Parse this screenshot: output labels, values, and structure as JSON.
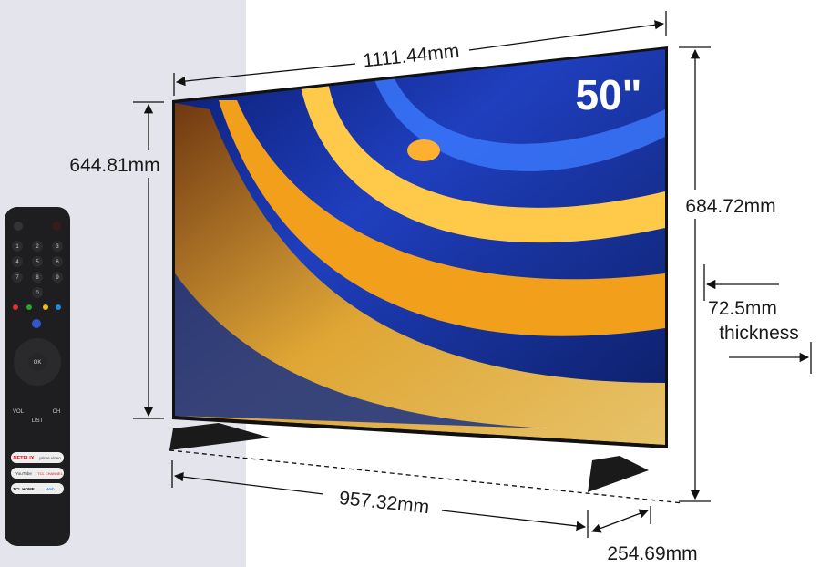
{
  "product": {
    "screen_size_badge": "50\"",
    "brand_colors": {
      "panel_bg": "#e4e4ec",
      "screen_blue": "#1f3fbf",
      "screen_orange": "#f5a623"
    }
  },
  "dimensions": {
    "width": "1111.44mm",
    "screen_height": "644.81mm",
    "total_height": "684.72mm",
    "thickness_value": "72.5mm",
    "thickness_label": "thickness",
    "stand_width": "957.32mm",
    "stand_depth": "254.69mm"
  },
  "remote": {
    "number_keys": [
      "1",
      "2",
      "3",
      "4",
      "5",
      "6",
      "7",
      "8",
      "9",
      "0"
    ],
    "ok_label": "OK",
    "vol_label": "VOL",
    "ch_label": "CH",
    "list_label": "LIST",
    "app_buttons": [
      "NETFLIX",
      "prime video",
      "YouTube",
      "TCL CHANNEL",
      "TCL HOME",
      "Web"
    ]
  }
}
